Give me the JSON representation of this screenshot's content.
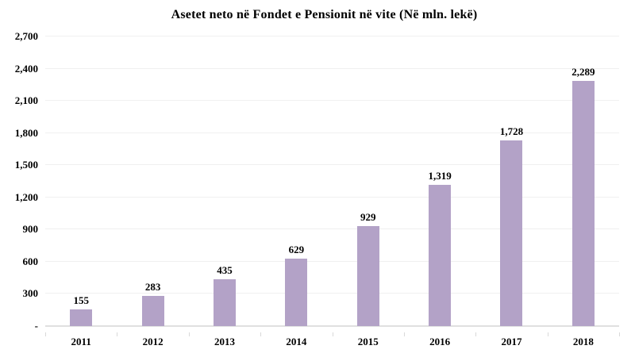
{
  "chart_data": {
    "type": "bar",
    "title": "Asetet neto në Fondet e Pensionit në vite (Në mln. lekë)",
    "categories": [
      "2011",
      "2012",
      "2013",
      "2014",
      "2015",
      "2016",
      "2017",
      "2018"
    ],
    "values": [
      155,
      283,
      435,
      629,
      929,
      1319,
      1728,
      2289
    ],
    "value_labels": [
      "155",
      "283",
      "435",
      "629",
      "929",
      "1,319",
      "1,728",
      "2,289"
    ],
    "xlabel": "",
    "ylabel": "",
    "ylim": [
      0,
      2700
    ],
    "ytick_step": 300,
    "ytick_labels_bottom_to_top": [
      "-",
      "300",
      "600",
      "900",
      "1,200",
      "1,500",
      "1,800",
      "2,100",
      "2,400",
      "2,700"
    ],
    "grid": "horizontal",
    "legend_position": "none",
    "colors": {
      "bar": "#b3a2c7",
      "gridline": "#f0f0f0",
      "axis_line": "#e0e0e0",
      "tick_mark": "#d9d9d9",
      "text": "#000000",
      "background": "#ffffff"
    }
  }
}
